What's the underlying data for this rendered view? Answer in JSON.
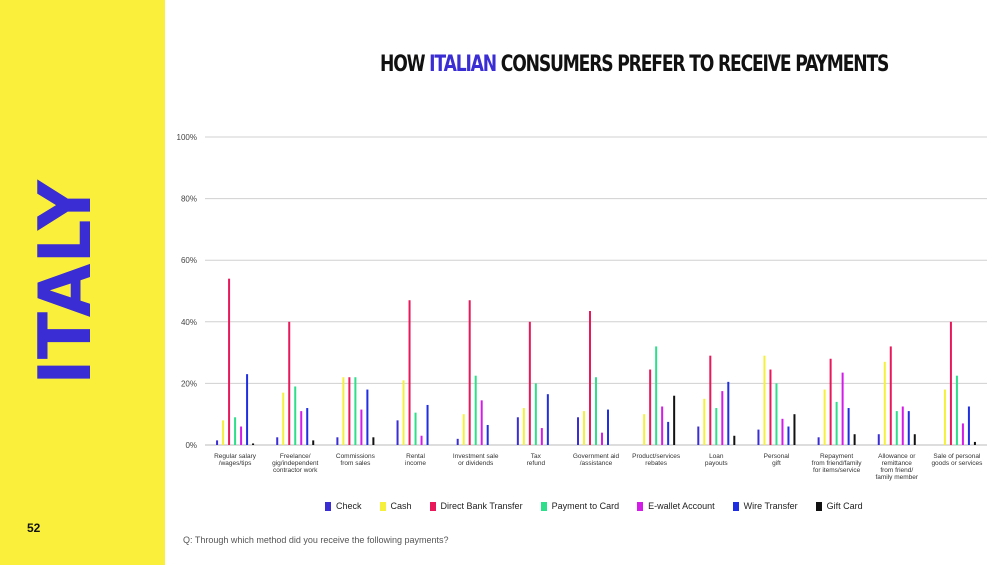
{
  "slide": {
    "country": "ITALY",
    "page_number": "52",
    "title_prefix": "HOW ",
    "title_highlight": "ITALIAN",
    "title_suffix": " CONSUMERS PREFER TO RECEIVE PAYMENTS",
    "question": "Q: Through which method did you receive the following payments?"
  },
  "colors": {
    "sidebar": "#faf03c",
    "country_text": "#3a2dd4",
    "highlight": "#3a2dd4"
  },
  "chart_data": {
    "type": "bar",
    "ylim": [
      0,
      100
    ],
    "yticks": [
      "0%",
      "20%",
      "40%",
      "60%",
      "80%",
      "100%"
    ],
    "grid": true,
    "legend_position": "bottom",
    "categories": [
      [
        "Regular salary",
        "/wages/tips"
      ],
      [
        "Freelance/",
        "gig/independent",
        "contractor work"
      ],
      [
        "Commissions",
        "from sales"
      ],
      [
        "Rental",
        "income"
      ],
      [
        "Investment sale",
        "or dividends"
      ],
      [
        "Tax",
        "refund"
      ],
      [
        "Government aid",
        "/assistance"
      ],
      [
        "Product/services",
        "rebates"
      ],
      [
        "Loan",
        "payouts"
      ],
      [
        "Personal",
        "gift"
      ],
      [
        "Repayment",
        "from friend/family",
        "for items/service"
      ],
      [
        "Allowance or",
        "remittance",
        "from friend/",
        "family member"
      ],
      [
        "Sale of personal",
        "goods or services"
      ]
    ],
    "series": [
      {
        "name": "Check",
        "color": "#3a2dd4",
        "values": [
          1.5,
          2.5,
          2.5,
          8,
          2,
          9,
          9,
          0,
          6,
          5,
          2.5,
          3.5,
          0
        ]
      },
      {
        "name": "Cash",
        "color": "#f5f03c",
        "values": [
          8,
          17,
          22,
          21,
          10,
          12,
          11,
          10,
          15,
          29,
          18,
          27,
          18
        ]
      },
      {
        "name": "Direct Bank Transfer",
        "color": "#e8185a",
        "values": [
          54,
          40,
          22,
          47,
          47,
          40,
          43.5,
          24.5,
          29,
          24.5,
          28,
          32,
          40
        ]
      },
      {
        "name": "Payment to Card",
        "color": "#2ddf8a",
        "values": [
          9,
          19,
          22,
          10.5,
          22.5,
          20,
          22,
          32,
          12,
          20,
          14,
          11,
          22.5
        ]
      },
      {
        "name": "E-wallet Account",
        "color": "#d41ce8",
        "values": [
          6,
          11,
          11.5,
          3,
          14.5,
          5.5,
          4,
          12.5,
          17.5,
          8.5,
          23.5,
          12.5,
          7
        ]
      },
      {
        "name": "Wire Transfer",
        "color": "#1f2ee0",
        "values": [
          23,
          12,
          18,
          13,
          6.5,
          16.5,
          11.5,
          7.5,
          20.5,
          6,
          12,
          11,
          12.5
        ]
      },
      {
        "name": "Gift Card",
        "color": "#111111",
        "values": [
          0.5,
          1.5,
          2.5,
          0,
          0,
          0,
          0,
          16,
          3,
          10,
          3.5,
          3.5,
          1
        ]
      }
    ]
  }
}
